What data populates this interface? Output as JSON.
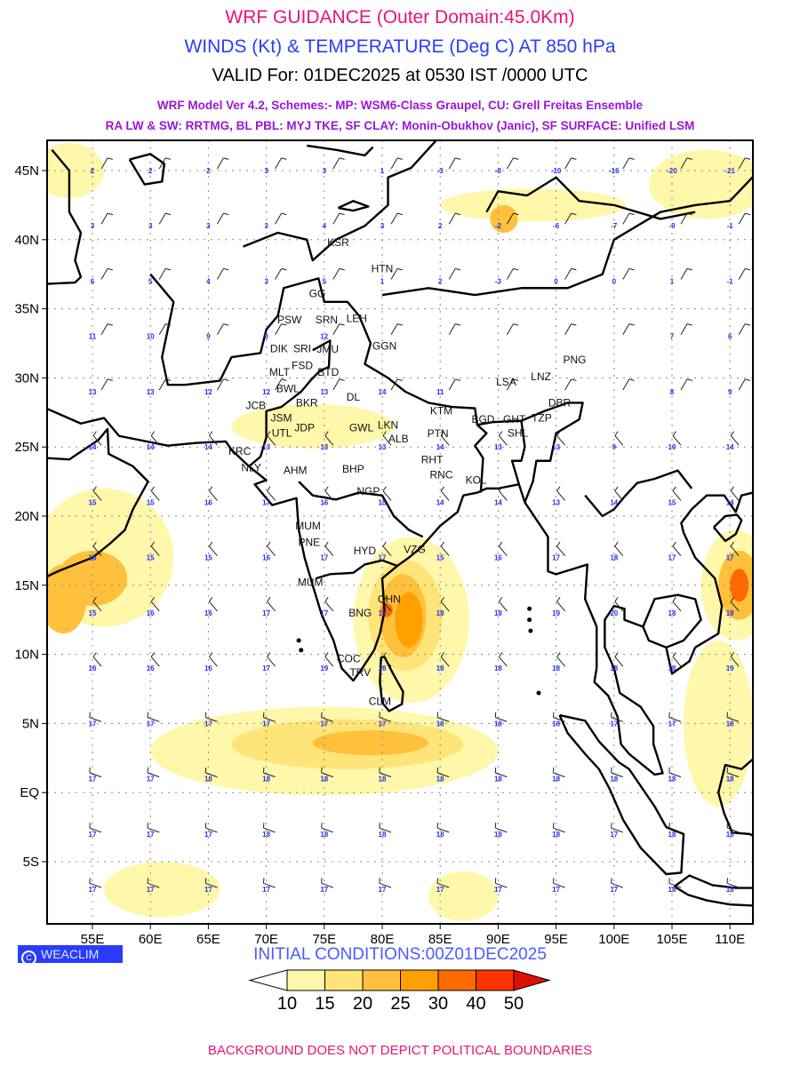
{
  "header": {
    "title": "WRF GUIDANCE (Outer Domain:45.0Km)",
    "subtitle": "WINDS (Kt) & TEMPERATURE (Deg C) AT 850 hPa",
    "valid": "VALID For: 01DEC2025 at 0530 IST /0000 UTC",
    "model_line1": "WRF Model Ver 4.2, Schemes:- MP: WSM6-Class Graupel, CU: Grell Freitas Ensemble",
    "model_line2": "RA LW & SW: RRTMG, BL PBL: MYJ TKE, SF CLAY: Monin-Obukhov (Janic), SF SURFACE: Unified LSM"
  },
  "axes": {
    "lon_labels": [
      "55E",
      "60E",
      "65E",
      "70E",
      "75E",
      "80E",
      "85E",
      "90E",
      "95E",
      "100E",
      "105E",
      "110E"
    ],
    "lon_values": [
      55,
      60,
      65,
      70,
      75,
      80,
      85,
      90,
      95,
      100,
      105,
      110
    ],
    "lat_labels": [
      "45N",
      "40N",
      "35N",
      "30N",
      "25N",
      "20N",
      "15N",
      "10N",
      "5N",
      "EQ",
      "5S"
    ],
    "lat_values": [
      45,
      40,
      35,
      30,
      25,
      20,
      15,
      10,
      5,
      0,
      -5
    ]
  },
  "stations": [
    {
      "code": "KSR",
      "lon": 76.2,
      "lat": 39.8
    },
    {
      "code": "HTN",
      "lon": 80.0,
      "lat": 37.2
    },
    {
      "code": "GG",
      "lon": 74.4,
      "lat": 36.1
    },
    {
      "code": "PSW",
      "lon": 72.0,
      "lat": 34.2
    },
    {
      "code": "SRN",
      "lon": 75.2,
      "lat": 34.2
    },
    {
      "code": "LEH",
      "lon": 77.8,
      "lat": 34.3
    },
    {
      "code": "DIK",
      "lon": 71.1,
      "lat": 32.1
    },
    {
      "code": "SRI",
      "lon": 73.1,
      "lat": 32.1
    },
    {
      "code": "JMU",
      "lon": 75.3,
      "lat": 32.8
    },
    {
      "code": "GGN",
      "lon": 80.2,
      "lat": 32.3
    },
    {
      "code": "FSD",
      "lon": 73.1,
      "lat": 31.6
    },
    {
      "code": "MLT",
      "lon": 71.6,
      "lat": 30.4
    },
    {
      "code": "BTD",
      "lon": 74.5,
      "lat": 30.4
    },
    {
      "code": "BWL",
      "lon": 71.4,
      "lat": 29.6
    },
    {
      "code": "JCB",
      "lon": 69.1,
      "lat": 28.4
    },
    {
      "code": "BKR",
      "lon": 73.5,
      "lat": 28.2
    },
    {
      "code": "DL",
      "lon": 77.5,
      "lat": 28.6
    },
    {
      "code": "JSM",
      "lon": 71.3,
      "lat": 27.1
    },
    {
      "code": "JDP",
      "lon": 73.3,
      "lat": 26.4
    },
    {
      "code": "UTL",
      "lon": 71.8,
      "lat": 26.0
    },
    {
      "code": "GWL",
      "lon": 78.2,
      "lat": 26.4
    },
    {
      "code": "LKN",
      "lon": 80.5,
      "lat": 26.6
    },
    {
      "code": "ALB",
      "lon": 81.4,
      "lat": 25.6
    },
    {
      "code": "PTN",
      "lon": 84.8,
      "lat": 25.6
    },
    {
      "code": "RHT",
      "lon": 84.3,
      "lat": 24.8
    },
    {
      "code": "RNC",
      "lon": 85.1,
      "lat": 23.7
    },
    {
      "code": "KTM",
      "lon": 85.1,
      "lat": 27.6
    },
    {
      "code": "LSA",
      "lon": 90.7,
      "lat": 29.7
    },
    {
      "code": "LNZ",
      "lon": 93.7,
      "lat": 30.1
    },
    {
      "code": "PNG",
      "lon": 96.6,
      "lat": 31.3
    },
    {
      "code": "BGD",
      "lon": 88.7,
      "lat": 27.0
    },
    {
      "code": "GHT",
      "lon": 91.4,
      "lat": 27.0
    },
    {
      "code": "TZP",
      "lon": 93.3,
      "lat": 27.1
    },
    {
      "code": "DBR",
      "lon": 95.3,
      "lat": 27.8
    },
    {
      "code": "SHL",
      "lon": 91.7,
      "lat": 26.0
    },
    {
      "code": "KOL",
      "lon": 88.1,
      "lat": 22.6
    },
    {
      "code": "KRC",
      "lon": 67.7,
      "lat": 24.7
    },
    {
      "code": "NLY",
      "lon": 68.7,
      "lat": 23.5
    },
    {
      "code": "AHM",
      "lon": 72.5,
      "lat": 23.3
    },
    {
      "code": "BHP",
      "lon": 77.5,
      "lat": 23.4
    },
    {
      "code": "NGP",
      "lon": 78.8,
      "lat": 21.4
    },
    {
      "code": "MUM",
      "lon": 73.6,
      "lat": 19.3
    },
    {
      "code": "PNE",
      "lon": 73.7,
      "lat": 18.5
    },
    {
      "code": "HYD",
      "lon": 78.5,
      "lat": 17.5
    },
    {
      "code": "VZG",
      "lon": 82.8,
      "lat": 17.6
    },
    {
      "code": "MUM",
      "lon": 73.8,
      "lat": 15.2
    },
    {
      "code": "BNG",
      "lon": 78.1,
      "lat": 13.0
    },
    {
      "code": "CHN",
      "lon": 80.6,
      "lat": 13.3
    },
    {
      "code": "COC",
      "lon": 77.1,
      "lat": 9.7
    },
    {
      "code": "TRV",
      "lon": 78.1,
      "lat": 8.7
    },
    {
      "code": "CLM",
      "lon": 79.8,
      "lat": 6.6
    }
  ],
  "temperature_grid": {
    "lons": [
      55,
      60,
      65,
      70,
      75,
      80,
      85,
      90,
      95,
      100,
      105,
      110
    ],
    "rows": [
      {
        "lat": 45,
        "values": [
          2,
          2,
          2,
          3,
          3,
          1,
          -3,
          -8,
          -10,
          -16,
          -20,
          -21
        ]
      },
      {
        "lat": 41,
        "values": [
          3,
          3,
          3,
          3,
          4,
          3,
          2,
          -2,
          -6,
          -7,
          -9,
          -1
        ]
      },
      {
        "lat": 37,
        "values": [
          6,
          5,
          4,
          3,
          5,
          1,
          2,
          -3,
          0,
          0,
          1,
          -1
        ]
      },
      {
        "lat": 33,
        "values": [
          11,
          10,
          9,
          8,
          12,
          null,
          null,
          null,
          null,
          null,
          7,
          6
        ]
      },
      {
        "lat": 29,
        "values": [
          13,
          13,
          12,
          12,
          13,
          14,
          11,
          null,
          null,
          null,
          8,
          9
        ]
      },
      {
        "lat": 25,
        "values": [
          14,
          14,
          14,
          13,
          13,
          13,
          14,
          13,
          13,
          9,
          10,
          14
        ]
      },
      {
        "lat": 21,
        "values": [
          15,
          15,
          16,
          17,
          16,
          15,
          14,
          14,
          13,
          14,
          15,
          14
        ]
      },
      {
        "lat": 17,
        "values": [
          15,
          15,
          15,
          16,
          17,
          17,
          15,
          16,
          17,
          18,
          17,
          17
        ]
      },
      {
        "lat": 13,
        "values": [
          15,
          16,
          16,
          17,
          17,
          17,
          18,
          18,
          19,
          20,
          18,
          18
        ]
      },
      {
        "lat": 9,
        "values": [
          16,
          16,
          16,
          17,
          19,
          18,
          18,
          18,
          18,
          18,
          18,
          19
        ]
      },
      {
        "lat": 5,
        "values": [
          17,
          17,
          17,
          17,
          17,
          17,
          18,
          18,
          18,
          17,
          17,
          18
        ]
      },
      {
        "lat": 1,
        "values": [
          17,
          17,
          18,
          18,
          18,
          18,
          18,
          18,
          18,
          18,
          18,
          18
        ]
      },
      {
        "lat": -3,
        "values": [
          17,
          17,
          17,
          18,
          18,
          18,
          18,
          18,
          18,
          17,
          18,
          18
        ]
      },
      {
        "lat": -7,
        "values": [
          17,
          17,
          17,
          17,
          17,
          17,
          17,
          17,
          17,
          17,
          18,
          18
        ]
      }
    ]
  },
  "wind_speed_areas": [
    {
      "name": "arabian-sea-band",
      "lon": 56,
      "lat": 17,
      "rlon": 6,
      "rlat": 5,
      "level": 10
    },
    {
      "name": "arabian-sea-core",
      "lon": 55,
      "lat": 15.5,
      "rlon": 3,
      "rlat": 2,
      "level": 20
    },
    {
      "name": "oman-coast",
      "lon": 52.5,
      "lat": 14,
      "rlon": 2,
      "rlat": 2.5,
      "level": 20
    },
    {
      "name": "rajasthan-band",
      "lon": 74,
      "lat": 26.5,
      "rlon": 7,
      "rlat": 1.6,
      "level": 10
    },
    {
      "name": "bay-of-bengal-outer",
      "lon": 82.5,
      "lat": 12.5,
      "rlon": 5,
      "rlat": 6,
      "level": 10
    },
    {
      "name": "bay-of-bengal-15",
      "lon": 82,
      "lat": 12.8,
      "rlon": 3.2,
      "rlat": 4,
      "level": 15
    },
    {
      "name": "bay-of-bengal-20",
      "lon": 81.8,
      "lat": 12.8,
      "rlon": 2,
      "rlat": 3,
      "level": 20
    },
    {
      "name": "bay-of-bengal-25",
      "lon": 82.3,
      "lat": 12.5,
      "rlon": 1.2,
      "rlat": 2,
      "level": 25
    },
    {
      "name": "bay-of-bengal-30",
      "lon": 80.4,
      "lat": 13.2,
      "rlon": 0.5,
      "rlat": 0.5,
      "level": 30
    },
    {
      "name": "equatorial-band",
      "lon": 75,
      "lat": 3,
      "rlon": 15,
      "rlat": 3.2,
      "level": 10
    },
    {
      "name": "equatorial-15",
      "lon": 77,
      "lat": 3.5,
      "rlon": 10,
      "rlat": 1.8,
      "level": 15
    },
    {
      "name": "equatorial-20",
      "lon": 79,
      "lat": 3.6,
      "rlon": 5,
      "rlat": 0.9,
      "level": 20
    },
    {
      "name": "south-china-sea-outer",
      "lon": 110.5,
      "lat": 15,
      "rlon": 3,
      "rlat": 4,
      "level": 10
    },
    {
      "name": "south-china-sea-20",
      "lon": 110.8,
      "lat": 15,
      "rlon": 1.8,
      "rlat": 2.5,
      "level": 20
    },
    {
      "name": "south-china-sea-30",
      "lon": 110.8,
      "lat": 15,
      "rlon": 0.8,
      "rlat": 1.2,
      "level": 30
    },
    {
      "name": "borneo-sea-band",
      "lon": 109,
      "lat": 5,
      "rlon": 3,
      "rlat": 6,
      "level": 10
    },
    {
      "name": "tibet-north-band",
      "lon": 93,
      "lat": 42.5,
      "rlon": 8,
      "rlat": 1.2,
      "level": 10
    },
    {
      "name": "tibet-north-core",
      "lon": 90.5,
      "lat": 41.5,
      "rlon": 1.2,
      "rlat": 1,
      "level": 20
    },
    {
      "name": "mongolia-band",
      "lon": 108,
      "lat": 44,
      "rlon": 5,
      "rlat": 2.5,
      "level": 10
    },
    {
      "name": "south-ocean-west",
      "lon": 61,
      "lat": -7,
      "rlon": 5,
      "rlat": 2,
      "level": 10
    },
    {
      "name": "south-ocean-east",
      "lon": 87,
      "lat": -7.5,
      "rlon": 3,
      "rlat": 1.8,
      "level": 10
    },
    {
      "name": "caspian-band",
      "lon": 53,
      "lat": 45,
      "rlon": 3,
      "rlat": 2,
      "level": 10
    }
  ],
  "colorbar": {
    "labels": [
      "10",
      "15",
      "20",
      "25",
      "30",
      "40",
      "50"
    ],
    "colors": [
      "#ffffff",
      "#fff7aa",
      "#ffe47a",
      "#ffc03c",
      "#ffa000",
      "#ff6a00",
      "#ff3300",
      "#dd1100"
    ]
  },
  "logo_text": "WEACLIM",
  "logo_symbol": "C",
  "initial_conditions": "INITIAL  CONDITIONS:00Z01DEC2025",
  "footer": "BACKGROUND DOES NOT DEPICT POLITICAL BOUNDARIES"
}
